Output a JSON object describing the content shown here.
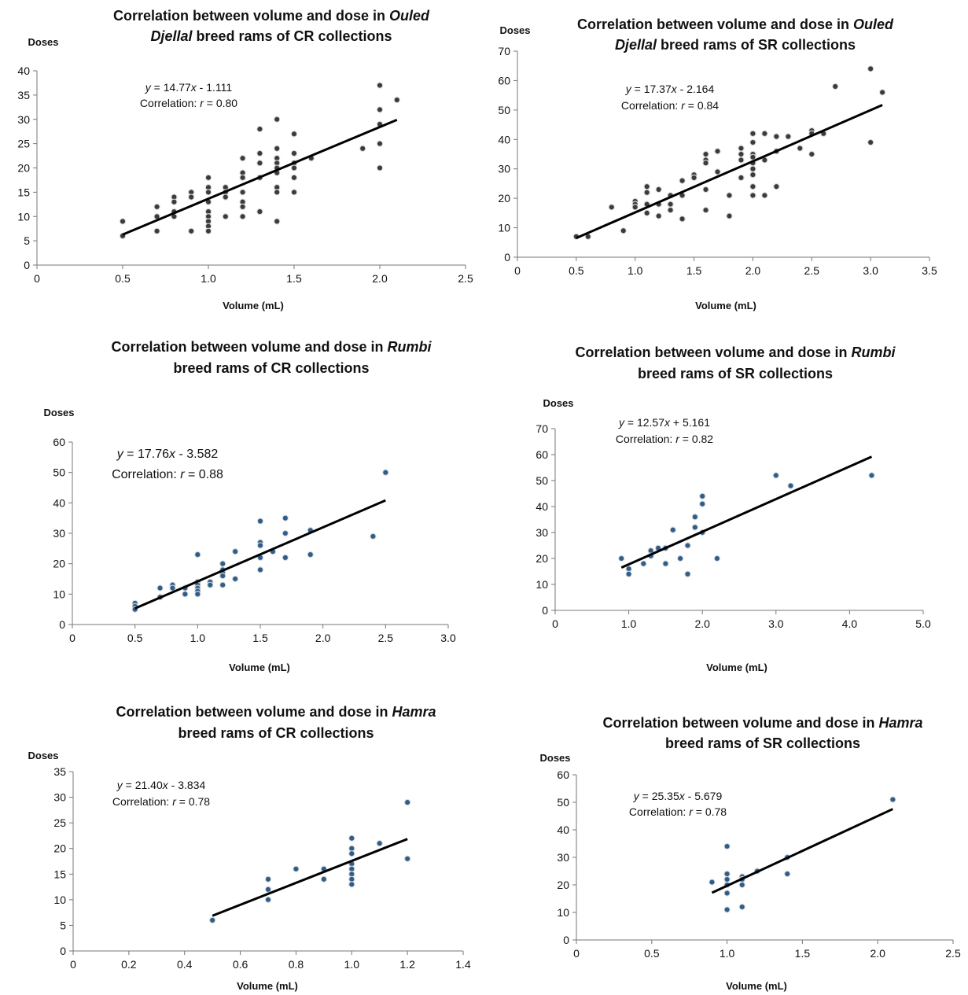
{
  "chart_data": [
    {
      "type": "scatter",
      "title": [
        "Correlation between volume and dose in ",
        "Ouled",
        " Djellal",
        " breed rams of CR collections"
      ],
      "xlabel": "Volume  (mL)",
      "ylabel": "Doses",
      "xlim": [
        0,
        2.5
      ],
      "ylim": [
        0,
        40
      ],
      "xticks": [
        "0",
        "0.5",
        "1.0",
        "1.5",
        "2.0",
        "2.5"
      ],
      "yticks": [
        "0",
        "5",
        "10",
        "15",
        "20",
        "25",
        "30",
        "35",
        "40"
      ],
      "equation": "y = 14.77x - 1.111",
      "correlation": "Correlation: r = 0.80",
      "trendline": {
        "x": [
          0.5,
          2.1
        ],
        "slope": 14.77,
        "intercept": -1.111
      },
      "marker_color": "#3b3b3b",
      "points": [
        [
          0.5,
          9
        ],
        [
          0.5,
          6
        ],
        [
          0.7,
          12
        ],
        [
          0.7,
          10
        ],
        [
          0.7,
          7
        ],
        [
          0.8,
          14
        ],
        [
          0.8,
          13
        ],
        [
          0.8,
          11
        ],
        [
          0.8,
          10
        ],
        [
          0.9,
          15
        ],
        [
          0.9,
          14
        ],
        [
          0.9,
          7
        ],
        [
          1.0,
          18
        ],
        [
          1.0,
          16
        ],
        [
          1.0,
          15
        ],
        [
          1.0,
          13
        ],
        [
          1.0,
          11
        ],
        [
          1.0,
          10
        ],
        [
          1.0,
          9
        ],
        [
          1.0,
          8
        ],
        [
          1.0,
          7
        ],
        [
          1.1,
          16
        ],
        [
          1.1,
          15
        ],
        [
          1.1,
          14
        ],
        [
          1.1,
          10
        ],
        [
          1.2,
          22
        ],
        [
          1.2,
          19
        ],
        [
          1.2,
          18
        ],
        [
          1.2,
          15
        ],
        [
          1.2,
          13
        ],
        [
          1.2,
          12
        ],
        [
          1.2,
          10
        ],
        [
          1.3,
          28
        ],
        [
          1.3,
          23
        ],
        [
          1.3,
          21
        ],
        [
          1.3,
          18
        ],
        [
          1.3,
          11
        ],
        [
          1.4,
          30
        ],
        [
          1.4,
          24
        ],
        [
          1.4,
          22
        ],
        [
          1.4,
          21
        ],
        [
          1.4,
          20
        ],
        [
          1.4,
          19
        ],
        [
          1.4,
          16
        ],
        [
          1.4,
          15
        ],
        [
          1.4,
          9
        ],
        [
          1.5,
          27
        ],
        [
          1.5,
          23
        ],
        [
          1.5,
          21
        ],
        [
          1.5,
          20
        ],
        [
          1.5,
          18
        ],
        [
          1.5,
          15
        ],
        [
          1.6,
          22
        ],
        [
          1.9,
          24
        ],
        [
          2.0,
          37
        ],
        [
          2.0,
          32
        ],
        [
          2.0,
          29
        ],
        [
          2.0,
          25
        ],
        [
          2.0,
          20
        ],
        [
          2.1,
          34
        ]
      ]
    },
    {
      "type": "scatter",
      "title": [
        "Correlation between volume and dose in ",
        "Ouled",
        " Djellal",
        " breed rams of SR collections"
      ],
      "xlabel": "Volume (mL)",
      "ylabel": "Doses",
      "xlim": [
        0,
        3.5
      ],
      "ylim": [
        0,
        70
      ],
      "xticks": [
        "0",
        "0.5",
        "1.0",
        "1.5",
        "2.0",
        "2.5",
        "3.0",
        "3.5"
      ],
      "yticks": [
        "0",
        "10",
        "20",
        "30",
        "40",
        "50",
        "60",
        "70"
      ],
      "equation": "y = 17.37x - 2.164",
      "correlation": "Correlation: r = 0.84",
      "trendline": {
        "x": [
          0.5,
          3.1
        ],
        "slope": 17.37,
        "intercept": -2.164
      },
      "marker_color": "#3b3b3b",
      "points": [
        [
          0.5,
          7
        ],
        [
          0.6,
          7
        ],
        [
          0.8,
          17
        ],
        [
          0.9,
          9
        ],
        [
          1.0,
          19
        ],
        [
          1.0,
          18
        ],
        [
          1.0,
          17
        ],
        [
          1.1,
          24
        ],
        [
          1.1,
          22
        ],
        [
          1.1,
          18
        ],
        [
          1.1,
          15
        ],
        [
          1.2,
          23
        ],
        [
          1.2,
          18
        ],
        [
          1.2,
          14
        ],
        [
          1.3,
          21
        ],
        [
          1.3,
          18
        ],
        [
          1.3,
          16
        ],
        [
          1.4,
          26
        ],
        [
          1.4,
          21
        ],
        [
          1.4,
          13
        ],
        [
          1.5,
          28
        ],
        [
          1.5,
          27
        ],
        [
          1.6,
          35
        ],
        [
          1.6,
          33
        ],
        [
          1.6,
          32
        ],
        [
          1.6,
          23
        ],
        [
          1.6,
          16
        ],
        [
          1.7,
          36
        ],
        [
          1.7,
          29
        ],
        [
          1.8,
          21
        ],
        [
          1.8,
          14
        ],
        [
          1.9,
          37
        ],
        [
          1.9,
          35
        ],
        [
          1.9,
          33
        ],
        [
          1.9,
          27
        ],
        [
          2.0,
          42
        ],
        [
          2.0,
          39
        ],
        [
          2.0,
          35
        ],
        [
          2.0,
          34
        ],
        [
          2.0,
          32
        ],
        [
          2.0,
          30
        ],
        [
          2.0,
          28
        ],
        [
          2.0,
          24
        ],
        [
          2.0,
          21
        ],
        [
          2.1,
          42
        ],
        [
          2.1,
          33
        ],
        [
          2.1,
          21
        ],
        [
          2.2,
          41
        ],
        [
          2.2,
          36
        ],
        [
          2.2,
          24
        ],
        [
          2.3,
          41
        ],
        [
          2.4,
          37
        ],
        [
          2.5,
          43
        ],
        [
          2.5,
          42
        ],
        [
          2.5,
          35
        ],
        [
          2.6,
          42
        ],
        [
          2.7,
          58
        ],
        [
          3.0,
          64
        ],
        [
          3.0,
          39
        ],
        [
          3.1,
          56
        ]
      ]
    },
    {
      "type": "scatter",
      "title": [
        "Correlation between volume and dose in ",
        "Rumbi",
        "",
        " breed rams of CR collections"
      ],
      "xlabel": "Volume (mL)",
      "ylabel": "Doses",
      "xlim": [
        0,
        3.0
      ],
      "ylim": [
        0,
        60
      ],
      "xticks": [
        "0",
        "0.5",
        "1.0",
        "1.5",
        "2.0",
        "2.5",
        "3.0"
      ],
      "yticks": [
        "0",
        "10",
        "20",
        "30",
        "40",
        "50",
        "60"
      ],
      "equation": "y = 17.76x - 3.582",
      "correlation": "Correlation: r = 0.88",
      "trendline": {
        "x": [
          0.5,
          2.5
        ],
        "slope": 17.76,
        "intercept": -3.582
      },
      "marker_color": "#2e5d8c",
      "points": [
        [
          0.5,
          7
        ],
        [
          0.5,
          6
        ],
        [
          0.5,
          5
        ],
        [
          0.7,
          12
        ],
        [
          0.7,
          9
        ],
        [
          0.8,
          13
        ],
        [
          0.8,
          12
        ],
        [
          0.9,
          12
        ],
        [
          0.9,
          10
        ],
        [
          1.0,
          23
        ],
        [
          1.0,
          14
        ],
        [
          1.0,
          13
        ],
        [
          1.0,
          12
        ],
        [
          1.0,
          11
        ],
        [
          1.0,
          10
        ],
        [
          1.1,
          14
        ],
        [
          1.1,
          13
        ],
        [
          1.2,
          20
        ],
        [
          1.2,
          18
        ],
        [
          1.2,
          17
        ],
        [
          1.2,
          16
        ],
        [
          1.2,
          13
        ],
        [
          1.3,
          24
        ],
        [
          1.3,
          15
        ],
        [
          1.5,
          34
        ],
        [
          1.5,
          27
        ],
        [
          1.5,
          26
        ],
        [
          1.5,
          22
        ],
        [
          1.5,
          18
        ],
        [
          1.6,
          24
        ],
        [
          1.7,
          35
        ],
        [
          1.7,
          30
        ],
        [
          1.7,
          22
        ],
        [
          1.9,
          31
        ],
        [
          1.9,
          23
        ],
        [
          2.4,
          29
        ],
        [
          2.5,
          50
        ]
      ]
    },
    {
      "type": "scatter",
      "title": [
        "Correlation between volume and dose in ",
        "Rumbi",
        "",
        " breed rams of SR collections"
      ],
      "xlabel": "Volume (mL)",
      "ylabel": "Doses",
      "xlim": [
        0,
        5.0
      ],
      "ylim": [
        0,
        70
      ],
      "xticks": [
        "0",
        "1.0",
        "2.0",
        "3.0",
        "4.0",
        "5.0"
      ],
      "yticks": [
        "0",
        "10",
        "20",
        "30",
        "40",
        "50",
        "60",
        "70"
      ],
      "equation": "y = 12.57x + 5.161",
      "correlation": "Correlation: r = 0.82",
      "trendline": {
        "x": [
          0.9,
          4.3
        ],
        "slope": 12.57,
        "intercept": 5.161
      },
      "marker_color": "#2e5d8c",
      "points": [
        [
          0.9,
          20
        ],
        [
          1.0,
          16
        ],
        [
          1.0,
          14
        ],
        [
          1.2,
          18
        ],
        [
          1.3,
          23
        ],
        [
          1.3,
          21
        ],
        [
          1.4,
          24
        ],
        [
          1.5,
          24
        ],
        [
          1.5,
          18
        ],
        [
          1.6,
          31
        ],
        [
          1.7,
          20
        ],
        [
          1.8,
          25
        ],
        [
          1.8,
          14
        ],
        [
          1.9,
          36
        ],
        [
          1.9,
          32
        ],
        [
          2.0,
          44
        ],
        [
          2.0,
          41
        ],
        [
          2.0,
          30
        ],
        [
          2.2,
          20
        ],
        [
          3.0,
          52
        ],
        [
          3.2,
          48
        ],
        [
          4.3,
          52
        ]
      ]
    },
    {
      "type": "scatter",
      "title": [
        "Correlation between volume and dose in ",
        "Hamra",
        "",
        " breed rams of CR collections"
      ],
      "xlabel": "Volume (mL)",
      "ylabel": "Doses",
      "xlim": [
        0,
        1.4
      ],
      "ylim": [
        0,
        35
      ],
      "xticks": [
        "0",
        "0.2",
        "0.4",
        "0.6",
        "0.8",
        "1.0",
        "1.2",
        "1.4"
      ],
      "yticks": [
        "0",
        "5",
        "10",
        "15",
        "20",
        "25",
        "30",
        "35"
      ],
      "equation": "y = 21.40x - 3.834",
      "correlation": "Correlation: r = 0.78",
      "trendline": {
        "x": [
          0.5,
          1.2
        ],
        "slope": 21.4,
        "intercept": -3.834
      },
      "marker_color": "#2e5d8c",
      "points": [
        [
          0.5,
          6
        ],
        [
          0.7,
          14
        ],
        [
          0.7,
          12
        ],
        [
          0.7,
          10
        ],
        [
          0.8,
          16
        ],
        [
          0.9,
          16
        ],
        [
          0.9,
          14
        ],
        [
          1.0,
          22
        ],
        [
          1.0,
          20
        ],
        [
          1.0,
          19
        ],
        [
          1.0,
          17
        ],
        [
          1.0,
          16
        ],
        [
          1.0,
          15
        ],
        [
          1.0,
          14
        ],
        [
          1.0,
          13
        ],
        [
          1.1,
          21
        ],
        [
          1.2,
          29
        ],
        [
          1.2,
          18
        ]
      ]
    },
    {
      "type": "scatter",
      "title": [
        "Correlation between volume and dose in ",
        "Hamra",
        "",
        " breed rams of SR collections"
      ],
      "xlabel": "Volume (mL)",
      "ylabel": "Doses",
      "xlim": [
        0,
        2.5
      ],
      "ylim": [
        0,
        60
      ],
      "xticks": [
        "0",
        "0.5",
        "1.0",
        "1.5",
        "2.0",
        "2.5"
      ],
      "yticks": [
        "0",
        "10",
        "20",
        "30",
        "40",
        "50",
        "60"
      ],
      "equation": "y = 25.35x - 5.679",
      "correlation": "Correlation: r = 0.78",
      "trendline": {
        "x": [
          0.9,
          2.1
        ],
        "slope": 25.35,
        "intercept": -5.679
      },
      "marker_color": "#2e5d8c",
      "points": [
        [
          0.9,
          21
        ],
        [
          1.0,
          34
        ],
        [
          1.0,
          24
        ],
        [
          1.0,
          22
        ],
        [
          1.0,
          20
        ],
        [
          1.0,
          17
        ],
        [
          1.0,
          11
        ],
        [
          1.1,
          23
        ],
        [
          1.1,
          22
        ],
        [
          1.1,
          20
        ],
        [
          1.1,
          12
        ],
        [
          1.2,
          25
        ],
        [
          1.4,
          30
        ],
        [
          1.4,
          24
        ],
        [
          2.1,
          51
        ]
      ]
    }
  ]
}
